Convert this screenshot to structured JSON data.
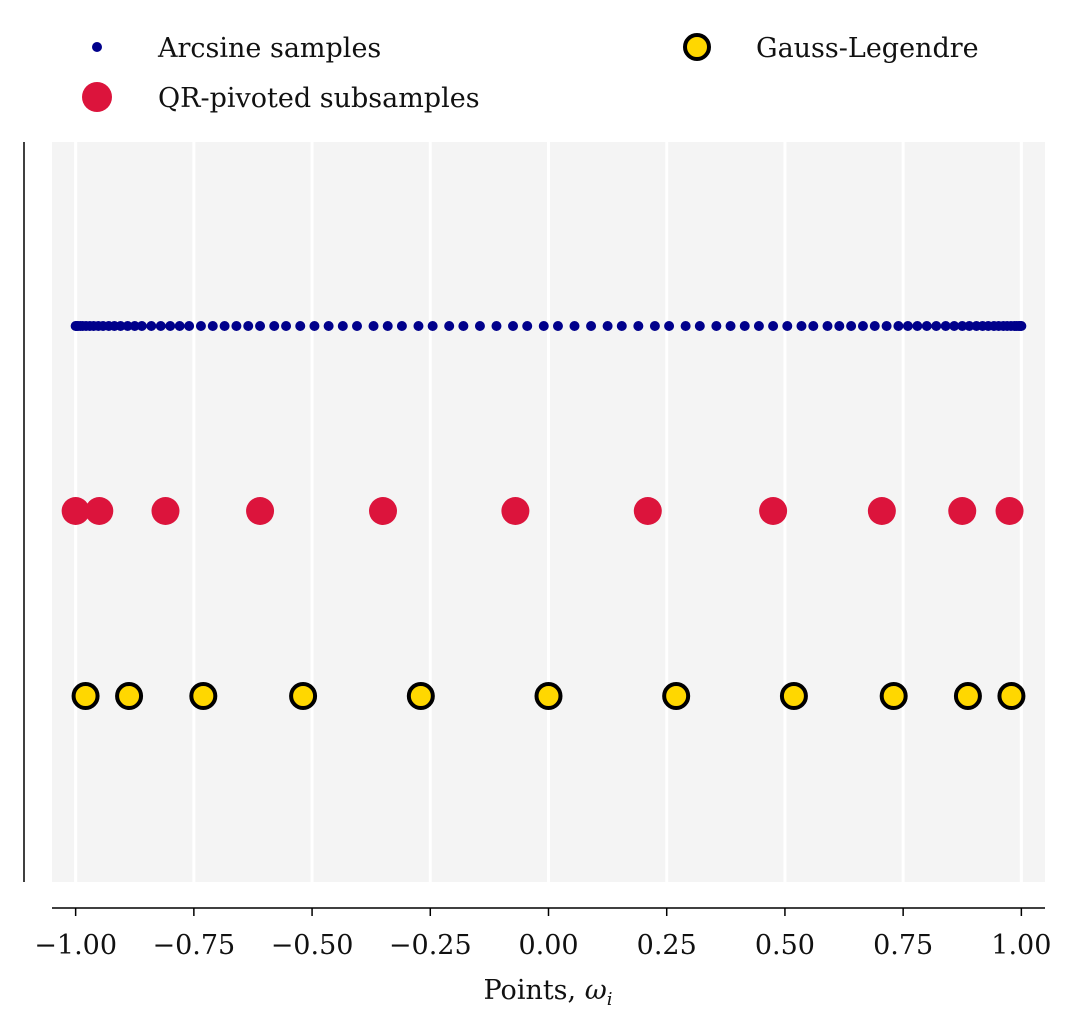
{
  "chart_data": {
    "type": "scatter",
    "title": "",
    "xlabel": "Points, ",
    "xlabel_symbol": "ω",
    "xlabel_subscript": "i",
    "ylabel": "",
    "xlim": [
      -1.05,
      1.05
    ],
    "grid": "vertical",
    "legend_position": "top",
    "x_ticks": [
      -1.0,
      -0.75,
      -0.5,
      -0.25,
      0.0,
      0.25,
      0.5,
      0.75,
      1.0
    ],
    "x_tick_labels": [
      "−1.00",
      "−0.75",
      "−0.50",
      "−0.25",
      "0.00",
      "0.25",
      "0.50",
      "0.75",
      "1.00"
    ],
    "series": [
      {
        "name": "Arcsine samples",
        "color": "#00008b",
        "marker": "small-dot",
        "row": 3,
        "x": [
          -1.0,
          -0.998,
          -0.995,
          -0.99,
          -0.985,
          -0.978,
          -0.97,
          -0.962,
          -0.952,
          -0.942,
          -0.93,
          -0.918,
          -0.905,
          -0.89,
          -0.875,
          -0.86,
          -0.84,
          -0.82,
          -0.8,
          -0.78,
          -0.76,
          -0.735,
          -0.71,
          -0.685,
          -0.66,
          -0.635,
          -0.61,
          -0.58,
          -0.555,
          -0.525,
          -0.495,
          -0.465,
          -0.435,
          -0.405,
          -0.37,
          -0.34,
          -0.31,
          -0.275,
          -0.245,
          -0.21,
          -0.18,
          -0.145,
          -0.11,
          -0.075,
          -0.045,
          -0.01,
          0.02,
          0.055,
          0.09,
          0.125,
          0.155,
          0.19,
          0.225,
          0.255,
          0.29,
          0.32,
          0.355,
          0.385,
          0.415,
          0.445,
          0.475,
          0.505,
          0.535,
          0.56,
          0.59,
          0.615,
          0.64,
          0.665,
          0.69,
          0.715,
          0.74,
          0.76,
          0.78,
          0.8,
          0.82,
          0.84,
          0.858,
          0.875,
          0.89,
          0.905,
          0.918,
          0.93,
          0.942,
          0.952,
          0.962,
          0.97,
          0.978,
          0.985,
          0.99,
          0.995,
          0.998,
          1.0
        ]
      },
      {
        "name": "QR-pivoted subsamples",
        "color": "#dc143c",
        "marker": "large-dot",
        "row": 2,
        "x": [
          -1.0,
          -0.95,
          -0.81,
          -0.61,
          -0.35,
          -0.07,
          0.21,
          0.475,
          0.705,
          0.875,
          0.975
        ]
      },
      {
        "name": "Gauss-Legendre",
        "color": "#ffd700",
        "edge_color": "#000000",
        "marker": "outlined-dot",
        "row": 1,
        "x": [
          -0.979,
          -0.887,
          -0.73,
          -0.519,
          -0.27,
          0.0,
          0.27,
          0.519,
          0.73,
          0.887,
          0.979
        ]
      }
    ]
  }
}
